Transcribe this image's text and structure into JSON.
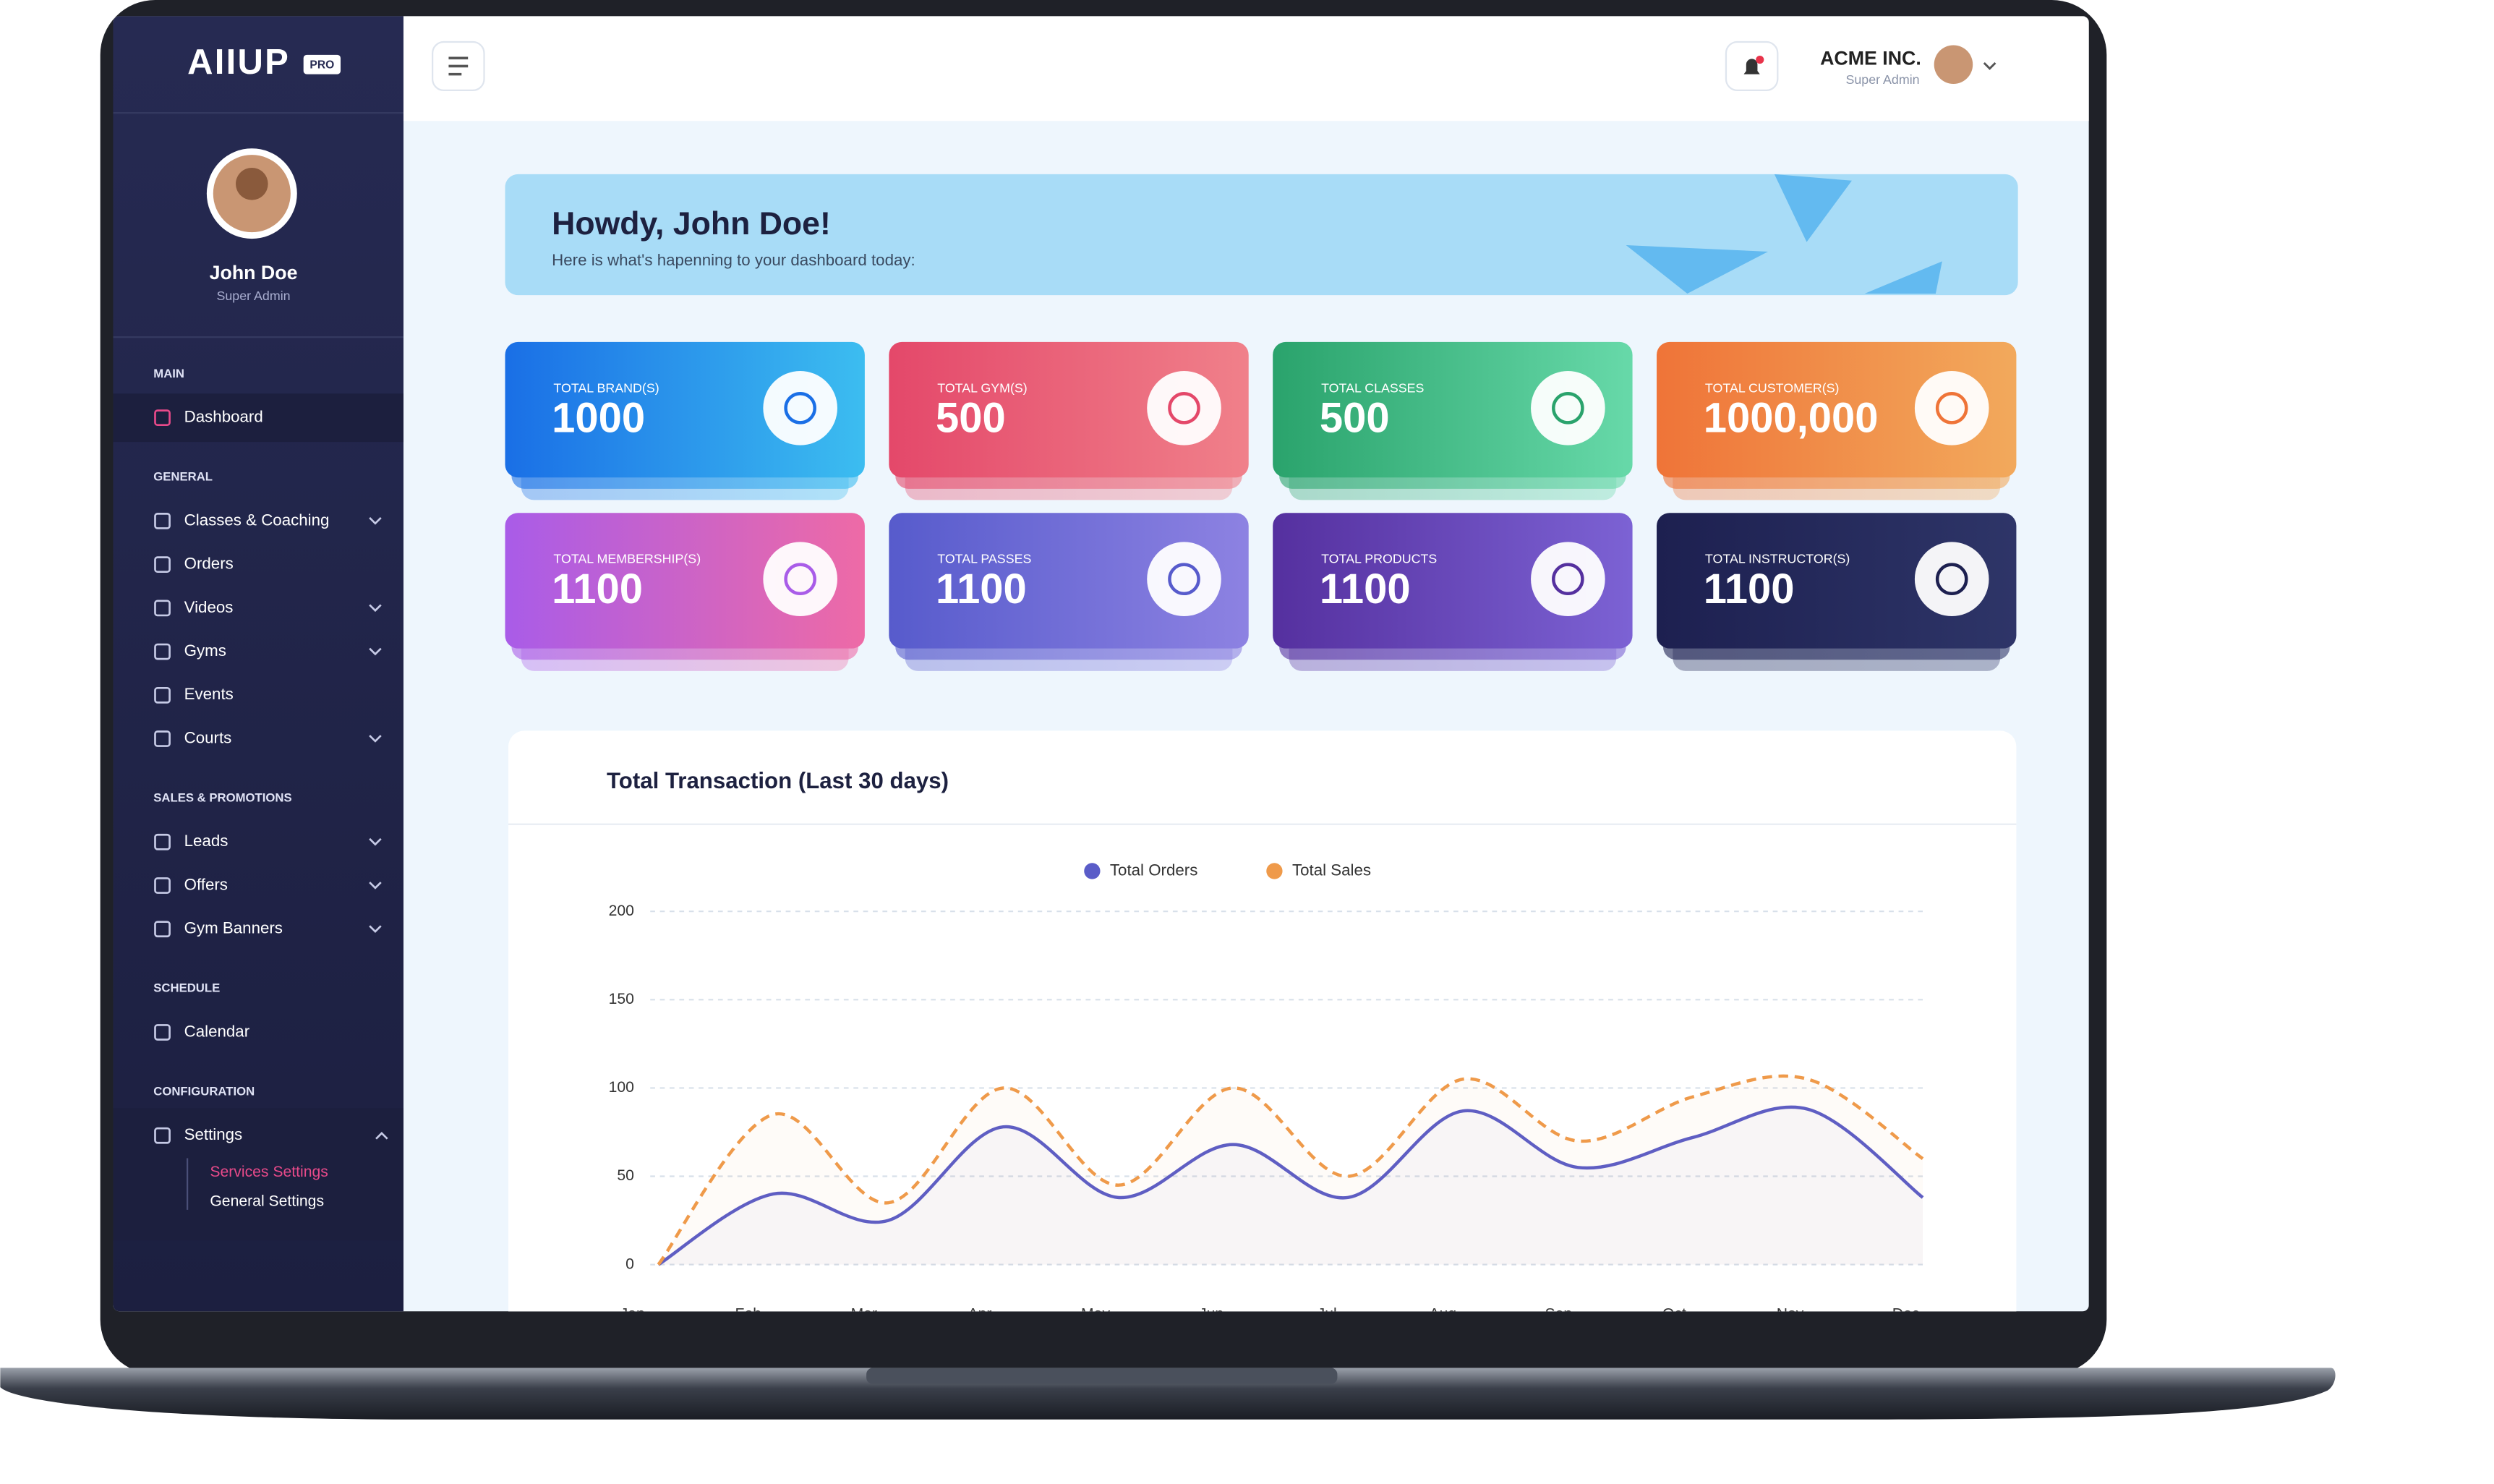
{
  "sidebar": {
    "brand": "AIIUP",
    "badge": "PRO",
    "user_name": "John Doe",
    "user_role": "Super Admin",
    "sections": [
      {
        "title": "MAIN",
        "items": [
          "Dashboard"
        ]
      },
      {
        "title": "GENERAL",
        "items": [
          "Classes & Coaching",
          "Orders",
          "Videos",
          "Gyms",
          "Events",
          "Courts"
        ]
      },
      {
        "title": "SALES & PROMOTIONS",
        "items": [
          "Leads",
          "Offers",
          "Gym Banners"
        ]
      },
      {
        "title": "SCHEDULE",
        "items": [
          "Calendar"
        ]
      },
      {
        "title": "CONFIGURATION",
        "items": [
          "Settings"
        ]
      }
    ],
    "subitems": [
      "Services Settings",
      "General Settings"
    ]
  },
  "header": {
    "company": "ACME INC.",
    "role": "Super Admin"
  },
  "banner": {
    "title": "Howdy, John Doe!",
    "subtitle": "Here is what's hapenning to your dashboard today:"
  },
  "cards": [
    {
      "label": "TOTAL BRAND(S)",
      "value": 1000
    },
    {
      "label": "TOTAL GYM(S)",
      "value": 500
    },
    {
      "label": "TOTAL CLASSES",
      "value": 500
    },
    {
      "label": "TOTAL CUSTOMER(S)",
      "value": "1000,000"
    },
    {
      "label": "TOTAL MEMBERSHIP(S)",
      "value": 1100
    },
    {
      "label": "TOTAL PASSES",
      "value": 1100
    },
    {
      "label": "TOTAL PRODUCTS",
      "value": 1100
    },
    {
      "label": "TOTAL INSTRUCTOR(S)",
      "value": 1100
    }
  ],
  "chart_data": {
    "type": "line",
    "title": "Total Transaction (Last 30 days)",
    "categories": [
      "Jan",
      "Feb",
      "Mar",
      "Apr",
      "May",
      "Jun",
      "Jul",
      "Aug",
      "Sep",
      "Oct",
      "Nov",
      "Dec"
    ],
    "series": [
      {
        "name": "Total Orders",
        "color": "#5a5cc8",
        "values": [
          0,
          40,
          25,
          78,
          38,
          68,
          38,
          87,
          55,
          72,
          88,
          38
        ]
      },
      {
        "name": "Total Sales",
        "color": "#ef9a4a",
        "values": [
          0,
          85,
          35,
          100,
          45,
          100,
          50,
          105,
          70,
          95,
          105,
          60
        ]
      }
    ],
    "ylim": [
      0,
      200
    ],
    "yticks": [
      0,
      50,
      100,
      150,
      200
    ],
    "grid": true,
    "legend": "top"
  }
}
